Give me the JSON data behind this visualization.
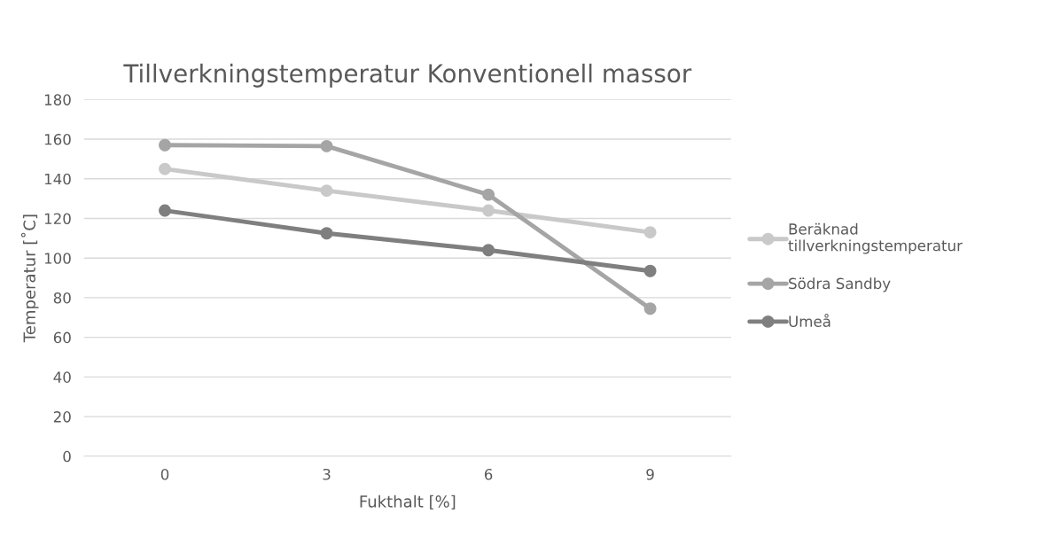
{
  "chart_data": {
    "type": "line",
    "title": "Tillverkningstemperatur Konventionell massor",
    "xlabel": "Fukthalt [%]",
    "ylabel": "Temperatur [˚C]",
    "categories": [
      "0",
      "3",
      "6",
      "9"
    ],
    "series": [
      {
        "name": "Beräknad tillverkningstemperatur",
        "color": "#c9c9c9",
        "values": [
          145,
          134,
          124,
          113
        ]
      },
      {
        "name": "Södra Sandby",
        "color": "#a5a5a5",
        "values": [
          157,
          156.5,
          132,
          74.5
        ]
      },
      {
        "name": "Umeå",
        "color": "#7f7f7f",
        "values": [
          124,
          112.5,
          104,
          93.5
        ]
      }
    ],
    "ylim": [
      0,
      180
    ],
    "yticks": [
      0,
      20,
      40,
      60,
      80,
      100,
      120,
      140,
      160,
      180
    ],
    "grid": "y",
    "legend": "right",
    "marker": "circle",
    "line_style": "solid"
  }
}
